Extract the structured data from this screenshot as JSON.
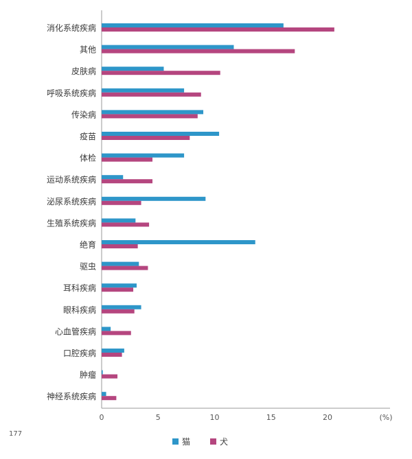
{
  "page_number": "177",
  "chart_data": {
    "type": "bar",
    "orientation": "horizontal",
    "categories": [
      "消化系统疾病",
      "其他",
      "皮肤病",
      "呼吸系统疾病",
      "传染病",
      "疫苗",
      "体检",
      "运动系统疾病",
      "泌尿系统疾病",
      "生殖系统疾病",
      "绝育",
      "驱虫",
      "耳科疾病",
      "眼科疾病",
      "心血管疾病",
      "口腔疾病",
      "肿瘤",
      "神经系统疾病"
    ],
    "series": [
      {
        "name": "猫",
        "color": "#2e96c9",
        "values": [
          16.1,
          11.7,
          5.5,
          7.3,
          9.0,
          10.4,
          7.3,
          1.9,
          9.2,
          3.0,
          13.6,
          3.3,
          3.1,
          3.5,
          0.8,
          2.0,
          0.1,
          0.4
        ]
      },
      {
        "name": "犬",
        "color": "#b5467f",
        "values": [
          20.6,
          17.1,
          10.5,
          8.8,
          8.5,
          7.8,
          4.5,
          4.5,
          3.5,
          4.2,
          3.2,
          4.1,
          2.8,
          2.9,
          2.6,
          1.8,
          1.4,
          1.3
        ]
      }
    ],
    "xticks": [
      "0",
      "5",
      "10",
      "15",
      "20"
    ],
    "xlim": [
      0,
      25
    ],
    "x_unit": "(%)",
    "legend_position": "bottom"
  }
}
